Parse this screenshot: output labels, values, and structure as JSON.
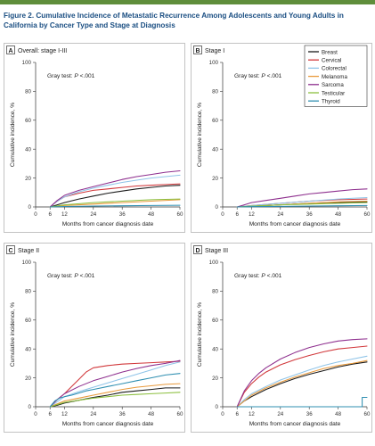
{
  "figure_title": "Figure 2. Cumulative Incidence of Metastatic Recurrence Among Adolescents and Young Adults in California by Cancer Type and Stage at Diagnosis",
  "colors": {
    "accent_bar": "#5f8e3b",
    "title": "#1a4e82"
  },
  "legend": [
    {
      "name": "Breast",
      "color": "#1a1a1a"
    },
    {
      "name": "Cervical",
      "color": "#d1373a"
    },
    {
      "name": "Colorectal",
      "color": "#8fc4e8"
    },
    {
      "name": "Melanoma",
      "color": "#e89a3c"
    },
    {
      "name": "Sarcoma",
      "color": "#8e2f8e"
    },
    {
      "name": "Testicular",
      "color": "#8cbf3f"
    },
    {
      "name": "Thyroid",
      "color": "#2f8fb1"
    }
  ],
  "chart_data": [
    {
      "type": "line",
      "panel_letter": "A",
      "title": "Overall: stage I-III",
      "annotation_prefix": "Gray test: ",
      "annotation_p": "P",
      "annotation_suffix": " <.001",
      "xlabel": "Months from cancer diagnosis date",
      "ylabel": "Cumulative incidence, %",
      "xlim": [
        0,
        60
      ],
      "ylim": [
        0,
        100
      ],
      "xticks": [
        0,
        6,
        12,
        24,
        36,
        48,
        60
      ],
      "yticks": [
        0,
        20,
        40,
        60,
        80,
        100
      ],
      "legend_position": "none",
      "series": [
        {
          "name": "Breast",
          "x": [
            6,
            9,
            12,
            18,
            24,
            30,
            36,
            42,
            48,
            54,
            60
          ],
          "y": [
            0,
            1.5,
            3,
            5.5,
            7.5,
            9.5,
            11,
            12.5,
            13.5,
            14.5,
            15
          ]
        },
        {
          "name": "Cervical",
          "x": [
            6,
            9,
            12,
            18,
            24,
            30,
            36,
            42,
            48,
            54,
            60
          ],
          "y": [
            0,
            4,
            7,
            9.5,
            11.5,
            12.5,
            13.5,
            14.5,
            15,
            15.5,
            16
          ]
        },
        {
          "name": "Colorectal",
          "x": [
            6,
            9,
            12,
            18,
            24,
            30,
            36,
            42,
            48,
            54,
            60
          ],
          "y": [
            0,
            4,
            7,
            10.5,
            13,
            15,
            17,
            18.5,
            20,
            21,
            22
          ]
        },
        {
          "name": "Melanoma",
          "x": [
            6,
            12,
            24,
            36,
            48,
            60
          ],
          "y": [
            0,
            1,
            2,
            3,
            4,
            5
          ]
        },
        {
          "name": "Sarcoma",
          "x": [
            6,
            9,
            12,
            18,
            24,
            30,
            36,
            42,
            48,
            54,
            60
          ],
          "y": [
            0,
            4.5,
            8,
            11.5,
            14,
            16.5,
            19,
            21,
            22.5,
            24,
            25
          ]
        },
        {
          "name": "Testicular",
          "x": [
            6,
            12,
            24,
            36,
            48,
            60
          ],
          "y": [
            0,
            1.5,
            3,
            4,
            5,
            5.5
          ]
        },
        {
          "name": "Thyroid",
          "x": [
            6,
            12,
            24,
            36,
            48,
            60
          ],
          "y": [
            0,
            0.3,
            0.6,
            0.8,
            1,
            1.2
          ]
        }
      ]
    },
    {
      "type": "line",
      "panel_letter": "B",
      "title": "Stage I",
      "annotation_prefix": "Gray test: ",
      "annotation_p": "P",
      "annotation_suffix": " <.001",
      "xlabel": "Months from cancer diagnosis date",
      "ylabel": "Cumulative incidence, %",
      "xlim": [
        0,
        60
      ],
      "ylim": [
        0,
        100
      ],
      "xticks": [
        0,
        6,
        12,
        24,
        36,
        48,
        60
      ],
      "yticks": [
        0,
        20,
        40,
        60,
        80,
        100
      ],
      "legend_position": "top-right",
      "series": [
        {
          "name": "Breast",
          "x": [
            6,
            12,
            24,
            36,
            48,
            60
          ],
          "y": [
            0,
            0.5,
            1.5,
            2.5,
            3,
            3.5
          ]
        },
        {
          "name": "Cervical",
          "x": [
            6,
            12,
            24,
            36,
            48,
            60
          ],
          "y": [
            0,
            1,
            2.5,
            4,
            5,
            5.5
          ]
        },
        {
          "name": "Colorectal",
          "x": [
            6,
            12,
            24,
            36,
            48,
            60
          ],
          "y": [
            0,
            1,
            2.5,
            4,
            5.5,
            6.5
          ]
        },
        {
          "name": "Melanoma",
          "x": [
            6,
            12,
            24,
            36,
            48,
            60
          ],
          "y": [
            0,
            0.5,
            1.5,
            2.5,
            3.5,
            4
          ]
        },
        {
          "name": "Sarcoma",
          "x": [
            6,
            9,
            12,
            18,
            24,
            30,
            36,
            42,
            48,
            54,
            60
          ],
          "y": [
            0,
            1.5,
            3,
            4.5,
            6,
            7.5,
            9,
            10,
            11,
            12,
            12.5
          ]
        },
        {
          "name": "Testicular",
          "x": [
            6,
            12,
            24,
            36,
            48,
            60
          ],
          "y": [
            0,
            0.5,
            1.5,
            2,
            2.5,
            3
          ]
        },
        {
          "name": "Thyroid",
          "x": [
            6,
            12,
            24,
            36,
            48,
            60
          ],
          "y": [
            0,
            0.2,
            0.4,
            0.6,
            0.8,
            1
          ]
        }
      ]
    },
    {
      "type": "line",
      "panel_letter": "C",
      "title": "Stage II",
      "annotation_prefix": "Gray test: ",
      "annotation_p": "P",
      "annotation_suffix": " <.001",
      "xlabel": "Months from cancer diagnosis date",
      "ylabel": "Cumulative incidence, %",
      "xlim": [
        0,
        60
      ],
      "ylim": [
        0,
        100
      ],
      "xticks": [
        0,
        6,
        12,
        24,
        36,
        48,
        60
      ],
      "yticks": [
        0,
        20,
        40,
        60,
        80,
        100
      ],
      "legend_position": "none",
      "series": [
        {
          "name": "Breast",
          "x": [
            6,
            9,
            12,
            18,
            24,
            30,
            36,
            42,
            48,
            54,
            60
          ],
          "y": [
            0,
            1,
            2.5,
            4.5,
            6.5,
            8,
            10,
            11,
            12,
            13,
            13
          ]
        },
        {
          "name": "Cervical",
          "x": [
            6,
            9,
            12,
            15,
            18,
            21,
            24,
            30,
            36,
            42,
            48,
            54,
            60
          ],
          "y": [
            0,
            5,
            9,
            14,
            19,
            24,
            27,
            28.5,
            29.5,
            30,
            30.5,
            31,
            31.5
          ]
        },
        {
          "name": "Colorectal",
          "x": [
            6,
            9,
            12,
            18,
            24,
            30,
            36,
            42,
            48,
            54,
            60
          ],
          "y": [
            0,
            3.5,
            7,
            10.5,
            13.5,
            16.5,
            19.5,
            22.5,
            25.5,
            28.5,
            31
          ]
        },
        {
          "name": "Melanoma",
          "x": [
            6,
            9,
            12,
            18,
            24,
            30,
            36,
            42,
            48,
            54,
            60
          ],
          "y": [
            0,
            2,
            4,
            6,
            8,
            10,
            12,
            13.5,
            14.5,
            15.5,
            16
          ]
        },
        {
          "name": "Sarcoma",
          "x": [
            6,
            9,
            12,
            18,
            24,
            30,
            36,
            42,
            48,
            54,
            60
          ],
          "y": [
            0,
            5,
            9,
            14,
            18,
            21,
            24,
            26.5,
            28.5,
            30,
            32
          ]
        },
        {
          "name": "Testicular",
          "x": [
            6,
            9,
            12,
            18,
            24,
            30,
            36,
            42,
            48,
            54,
            60
          ],
          "y": [
            0,
            1.5,
            3,
            4.5,
            6,
            7,
            8,
            8.5,
            9,
            9.5,
            10
          ]
        },
        {
          "name": "Thyroid",
          "x": [
            6,
            8,
            10,
            12,
            15,
            18,
            21,
            24,
            30,
            36,
            42,
            48,
            54,
            60
          ],
          "y": [
            0,
            4,
            6,
            7,
            8,
            9.5,
            11,
            12,
            14,
            16,
            18,
            20,
            22,
            23
          ]
        }
      ]
    },
    {
      "type": "line",
      "panel_letter": "D",
      "title": "Stage III",
      "annotation_prefix": "Gray test: ",
      "annotation_p": "P",
      "annotation_suffix": " <.001",
      "xlabel": "Months from cancer diagnosis date",
      "ylabel": "Cumulative incidence, %",
      "xlim": [
        0,
        60
      ],
      "ylim": [
        0,
        100
      ],
      "xticks": [
        0,
        6,
        12,
        24,
        36,
        48,
        60
      ],
      "yticks": [
        0,
        20,
        40,
        60,
        80,
        100
      ],
      "legend_position": "none",
      "series": [
        {
          "name": "Breast",
          "x": [
            6,
            9,
            12,
            18,
            24,
            30,
            36,
            42,
            48,
            54,
            60
          ],
          "y": [
            0,
            4,
            7,
            12,
            16,
            19.5,
            22.5,
            25,
            27.5,
            29.5,
            31
          ]
        },
        {
          "name": "Cervical",
          "x": [
            6,
            9,
            12,
            15,
            18,
            24,
            30,
            36,
            42,
            48,
            54,
            60
          ],
          "y": [
            0,
            10,
            16,
            20.5,
            24,
            29,
            32.5,
            35.5,
            38,
            40,
            41,
            42
          ]
        },
        {
          "name": "Colorectal",
          "x": [
            6,
            9,
            12,
            18,
            24,
            30,
            36,
            42,
            48,
            54,
            60
          ],
          "y": [
            0,
            5,
            9,
            14,
            18.5,
            22,
            25.5,
            28.5,
            31,
            33,
            35
          ]
        },
        {
          "name": "Melanoma",
          "x": [
            6,
            9,
            12,
            18,
            24,
            30,
            36,
            42,
            48,
            54,
            60
          ],
          "y": [
            0,
            4,
            8,
            13,
            17,
            20.5,
            23.5,
            26.5,
            28.5,
            30,
            32
          ]
        },
        {
          "name": "Sarcoma",
          "x": [
            6,
            9,
            12,
            15,
            18,
            24,
            30,
            36,
            42,
            48,
            54,
            60
          ],
          "y": [
            0,
            11,
            18,
            23,
            27,
            33,
            37.5,
            41,
            43.5,
            45.5,
            46.5,
            47
          ]
        },
        {
          "name": "Thyroid",
          "x": [
            6,
            58,
            58,
            60
          ],
          "y": [
            0,
            0,
            6.5,
            6.5
          ]
        }
      ]
    }
  ]
}
